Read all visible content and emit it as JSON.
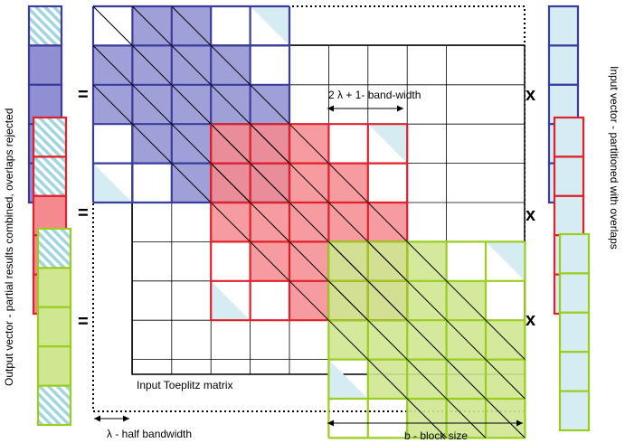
{
  "labels": {
    "band_width": "2 λ + 1- band-width",
    "matrix": "Input Toeplitz matrix",
    "half_bandwidth": "λ - half bandwidth",
    "block_size": "b - block size",
    "output_vector": "Output vector - partial results combined, overlaps rejected",
    "input_vector": "Input vector - partitioned with overlaps"
  },
  "operators": {
    "equals": "=",
    "times": "x"
  },
  "colors": {
    "blue_block": "#3b3b9e",
    "blue_fill": "#8f8fd1",
    "red_block": "#e0202a",
    "red_fill": "#f58a8e",
    "green_block": "#9acd1e",
    "green_fill": "#cfe790",
    "hatch": "#9fd6df",
    "vector_fill": "#d5edf2"
  }
}
